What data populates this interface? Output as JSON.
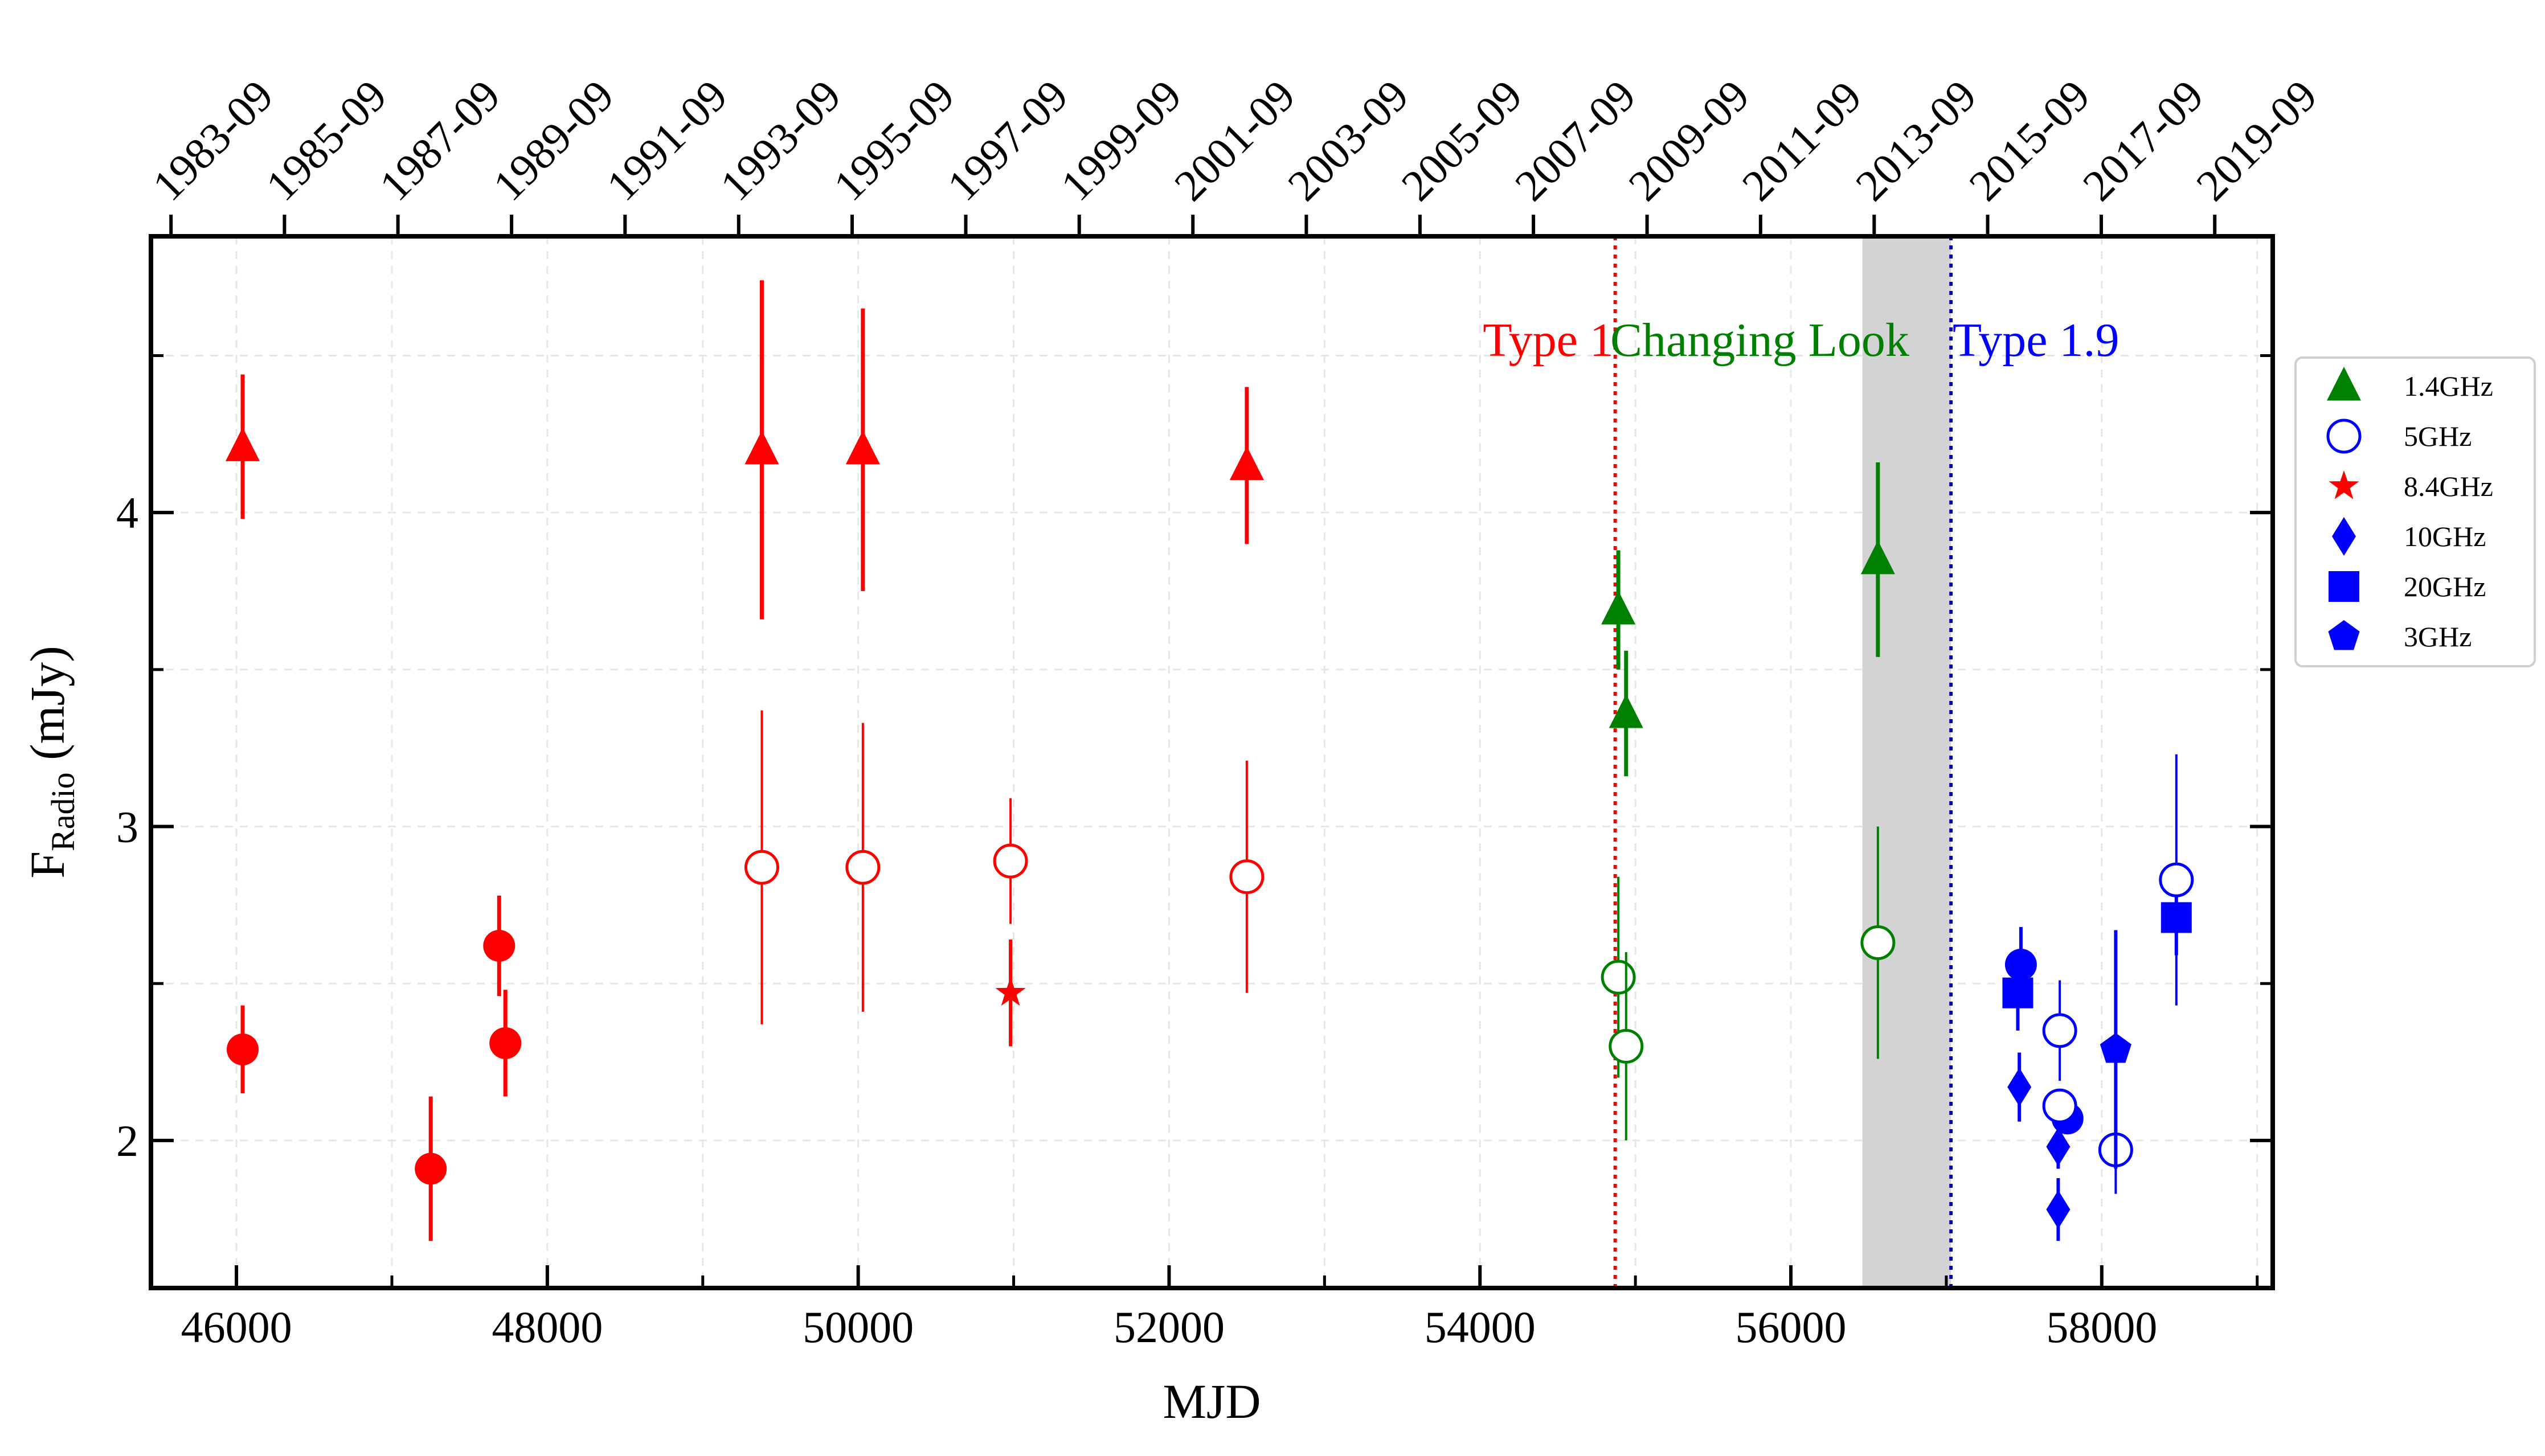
{
  "chart_data": {
    "type": "scatter",
    "xlabel": "MJD",
    "ylabel_main": "F",
    "ylabel_sub": "Radio",
    "ylabel_unit": "(mJy)",
    "xlim": [
      45450,
      59100
    ],
    "ylim": [
      1.53,
      4.88
    ],
    "x_ticks": [
      46000,
      48000,
      50000,
      52000,
      54000,
      56000,
      58000
    ],
    "y_ticks": [
      2,
      3,
      4
    ],
    "grid": "dashed-light",
    "top_axis": {
      "ticks": [
        {
          "x": 45579,
          "label": "1983-09"
        },
        {
          "x": 46309,
          "label": "1985-09"
        },
        {
          "x": 47039,
          "label": "1987-09"
        },
        {
          "x": 47770,
          "label": "1989-09"
        },
        {
          "x": 48500,
          "label": "1991-09"
        },
        {
          "x": 49231,
          "label": "1993-09"
        },
        {
          "x": 49961,
          "label": "1995-09"
        },
        {
          "x": 50692,
          "label": "1997-09"
        },
        {
          "x": 51422,
          "label": "1999-09"
        },
        {
          "x": 52153,
          "label": "2001-09"
        },
        {
          "x": 52883,
          "label": "2003-09"
        },
        {
          "x": 53614,
          "label": "2005-09"
        },
        {
          "x": 54344,
          "label": "2007-09"
        },
        {
          "x": 55075,
          "label": "2009-09"
        },
        {
          "x": 55805,
          "label": "2011-09"
        },
        {
          "x": 56536,
          "label": "2013-09"
        },
        {
          "x": 57266,
          "label": "2015-09"
        },
        {
          "x": 57997,
          "label": "2017-09"
        },
        {
          "x": 58727,
          "label": "2019-09"
        }
      ]
    },
    "shaded_region": {
      "x0": 56460,
      "x1": 57030,
      "color": "#d3d3d3"
    },
    "vlines": [
      {
        "x": 54870,
        "color": "#ff0000",
        "style": "dotted"
      },
      {
        "x": 57030,
        "color": "#0000cc",
        "style": "dotted"
      }
    ],
    "annotations": [
      {
        "text": "Type 1",
        "color": "#ff0000",
        "anchor_x": 54860,
        "anchor_y": 4.55,
        "align": "end"
      },
      {
        "text": "Changing Look",
        "color": "#008000",
        "anchor_x": 55800,
        "anchor_y": 4.55,
        "align": "middle"
      },
      {
        "text": "Type 1.9",
        "color": "#0000ff",
        "anchor_x": 57040,
        "anchor_y": 4.55,
        "align": "start"
      }
    ],
    "legend": {
      "placement": "right-outside",
      "entries": [
        {
          "label": "1.4GHz",
          "marker": "triangle",
          "filled": true,
          "color": "#008000"
        },
        {
          "label": "5GHz",
          "marker": "circle",
          "filled": false,
          "color": "#0000ff"
        },
        {
          "label": "8.4GHz",
          "marker": "star",
          "filled": true,
          "color": "#ff0000"
        },
        {
          "label": "10GHz",
          "marker": "diamond",
          "filled": true,
          "color": "#0000ff"
        },
        {
          "label": "20GHz",
          "marker": "square",
          "filled": true,
          "color": "#0000ff"
        },
        {
          "label": "3GHz",
          "marker": "pentagon",
          "filled": true,
          "color": "#0000ff"
        }
      ]
    },
    "series": [
      {
        "marker": "triangle",
        "filled": true,
        "color": "#ff0000",
        "lw": 7,
        "points": [
          {
            "x": 46040,
            "y": 4.21,
            "err": 0.23
          },
          {
            "x": 49380,
            "y": 4.2,
            "err": 0.54
          },
          {
            "x": 50030,
            "y": 4.2,
            "err": 0.45
          },
          {
            "x": 52500,
            "y": 4.15,
            "err": 0.25
          }
        ]
      },
      {
        "marker": "circle",
        "filled": false,
        "color": "#ff0000",
        "lw": 4,
        "points": [
          {
            "x": 49380,
            "y": 2.87,
            "err": 0.5
          },
          {
            "x": 50030,
            "y": 2.87,
            "err": 0.46
          },
          {
            "x": 50980,
            "y": 2.89,
            "err": 0.2
          },
          {
            "x": 52500,
            "y": 2.84,
            "err": 0.37
          }
        ]
      },
      {
        "marker": "circle",
        "filled": true,
        "color": "#ff0000",
        "lw": 7,
        "points": [
          {
            "x": 46040,
            "y": 2.29,
            "err": 0.14
          },
          {
            "x": 47250,
            "y": 1.91,
            "err": 0.23
          },
          {
            "x": 47690,
            "y": 2.62,
            "err": 0.16
          },
          {
            "x": 47730,
            "y": 2.31,
            "err": 0.17
          }
        ]
      },
      {
        "marker": "star",
        "filled": true,
        "color": "#ff0000",
        "lw": 6,
        "points": [
          {
            "x": 50980,
            "y": 2.47,
            "err": 0.17
          }
        ]
      },
      {
        "marker": "triangle",
        "filled": true,
        "color": "#008000",
        "lw": 7,
        "points": [
          {
            "x": 54890,
            "y": 3.69,
            "err": 0.19
          },
          {
            "x": 54940,
            "y": 3.36,
            "err": 0.2
          },
          {
            "x": 56560,
            "y": 3.85,
            "err": 0.31
          }
        ]
      },
      {
        "marker": "circle",
        "filled": false,
        "color": "#008000",
        "lw": 4,
        "points": [
          {
            "x": 54890,
            "y": 2.52,
            "err": 0.32
          },
          {
            "x": 54940,
            "y": 2.3,
            "err": 0.3
          },
          {
            "x": 56560,
            "y": 2.63,
            "err": 0.37
          }
        ]
      },
      {
        "marker": "circle",
        "filled": true,
        "color": "#0000ff",
        "lw": 6,
        "points": [
          {
            "x": 57480,
            "y": 2.56,
            "err": 0.12
          },
          {
            "x": 57780,
            "y": 2.07,
            "err": 0.04
          }
        ]
      },
      {
        "marker": "square",
        "filled": true,
        "color": "#0000ff",
        "lw": 6,
        "points": [
          {
            "x": 57460,
            "y": 2.47,
            "err": 0.12
          },
          {
            "x": 58480,
            "y": 2.71,
            "err": 0.12
          }
        ]
      },
      {
        "marker": "circle",
        "filled": false,
        "color": "#0000ff",
        "lw": 4,
        "points": [
          {
            "x": 57730,
            "y": 2.35,
            "err": 0.16
          },
          {
            "x": 57730,
            "y": 2.11,
            "err": 0.05
          },
          {
            "x": 58090,
            "y": 1.97,
            "err": 0.14
          },
          {
            "x": 58480,
            "y": 2.83,
            "err": 0.4
          }
        ]
      },
      {
        "marker": "diamond",
        "filled": true,
        "color": "#0000ff",
        "lw": 6,
        "points": [
          {
            "x": 57470,
            "y": 2.17,
            "err": 0.11
          },
          {
            "x": 57720,
            "y": 1.98,
            "err": 0.07
          },
          {
            "x": 57720,
            "y": 1.78,
            "err": 0.1
          }
        ]
      },
      {
        "marker": "pentagon",
        "filled": true,
        "color": "#0000ff",
        "lw": 6,
        "points": [
          {
            "x": 58090,
            "y": 2.29,
            "err": 0.38
          }
        ]
      }
    ]
  }
}
